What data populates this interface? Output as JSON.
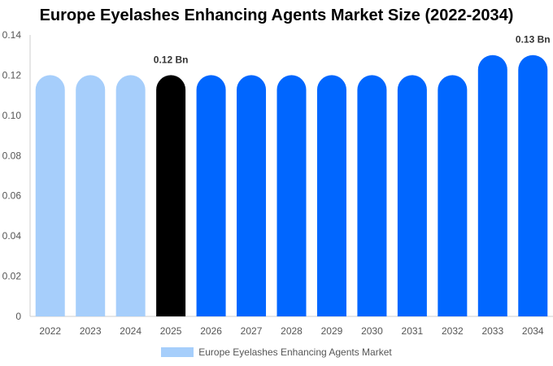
{
  "chart_data": {
    "type": "bar",
    "title": "Europe Eyelashes Enhancing Agents Market Size (2022-2034)",
    "categories": [
      "2022",
      "2023",
      "2024",
      "2025",
      "2026",
      "2027",
      "2028",
      "2029",
      "2030",
      "2031",
      "2032",
      "2033",
      "2034"
    ],
    "series": [
      {
        "name": "Europe Eyelashes Enhancing Agents Market",
        "values": [
          0.12,
          0.12,
          0.12,
          0.12,
          0.12,
          0.12,
          0.12,
          0.12,
          0.12,
          0.12,
          0.12,
          0.13,
          0.13
        ]
      }
    ],
    "bar_colors": [
      "#a6cefb",
      "#a6cefb",
      "#a6cefb",
      "#000000",
      "#0066ff",
      "#0066ff",
      "#0066ff",
      "#0066ff",
      "#0066ff",
      "#0066ff",
      "#0066ff",
      "#0066ff",
      "#0066ff"
    ],
    "data_labels": [
      {
        "category": "2025",
        "text": "0.12 Bn"
      },
      {
        "category": "2034",
        "text": "0.13 Bn"
      }
    ],
    "ylim": [
      0,
      0.14
    ],
    "yticks": [
      "0",
      "0.02",
      "0.04",
      "0.06",
      "0.08",
      "0.10",
      "0.12",
      "0.14"
    ],
    "xlabel": "",
    "ylabel": "",
    "grid": false,
    "legend_position": "bottom"
  }
}
